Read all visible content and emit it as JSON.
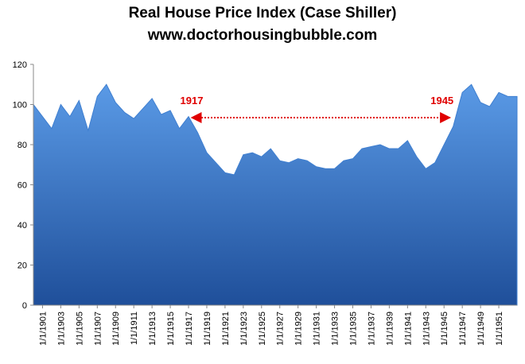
{
  "chart_data": {
    "type": "area",
    "title": "Real House Price Index (Case Shiller)",
    "subtitle": "www.doctorhousingbubble.com",
    "categories": [
      null,
      "1/1/1901",
      null,
      "1/1/1903",
      null,
      "1/1/1905",
      null,
      "1/1/1907",
      null,
      "1/1/1909",
      null,
      "1/1/1911",
      null,
      "1/1/1913",
      null,
      "1/1/1915",
      null,
      "1/1/1917",
      null,
      "1/1/1919",
      null,
      "1/1/1921",
      null,
      "1/1/1923",
      null,
      "1/1/1925",
      null,
      "1/1/1927",
      null,
      "1/1/1929",
      null,
      "1/1/1931",
      null,
      "1/1/1933",
      null,
      "1/1/1935",
      null,
      "1/1/1937",
      null,
      "1/1/1939",
      null,
      "1/1/1941",
      null,
      "1/1/1943",
      null,
      "1/1/1945",
      null,
      "1/1/1947",
      null,
      "1/1/1949",
      null,
      "1/1/1951",
      null,
      null
    ],
    "values": [
      100,
      94,
      88,
      100,
      94,
      102,
      87,
      104,
      110,
      101,
      96,
      93,
      98,
      103,
      95,
      97,
      88,
      94,
      86,
      76,
      71,
      66,
      65,
      75,
      76,
      74,
      78,
      72,
      71,
      73,
      72,
      69,
      68,
      68,
      72,
      73,
      78,
      79,
      80,
      78,
      78,
      82,
      74,
      68,
      71,
      80,
      89,
      106,
      110,
      101,
      99,
      106,
      104,
      104
    ],
    "color": "#3f7fd0",
    "ylim": [
      0,
      120
    ],
    "yticks": [
      0,
      20,
      40,
      60,
      80,
      100,
      120
    ],
    "annotations": [
      {
        "text": "1917",
        "index": 17
      },
      {
        "text": "1945",
        "index": 46
      }
    ]
  }
}
